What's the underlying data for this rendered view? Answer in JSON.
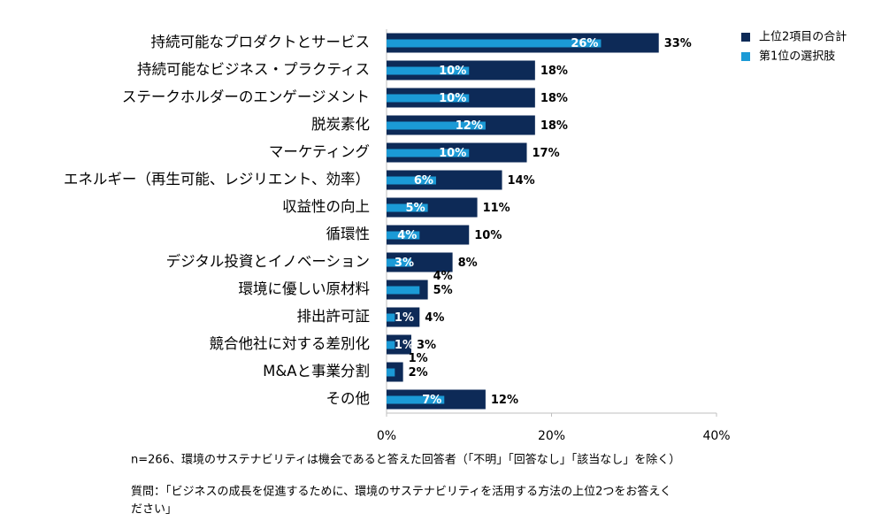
{
  "chart_data": {
    "type": "bar",
    "orientation": "horizontal",
    "categories": [
      "持続可能なプロダクトとサービス",
      "持続可能なビジネス・プラクティス",
      "ステークホルダーのエンゲージメント",
      "脱炭素化",
      "マーケティング",
      "エネルギー（再生可能、レジリエント、効率）",
      "収益性の向上",
      "循環性",
      "デジタル投資とイノベーション",
      "環境に優しい原材料",
      "排出許可証",
      "競合他社に対する差別化",
      "M&Aと事業分割",
      "その他"
    ],
    "series": [
      {
        "name": "上位2項目の合計",
        "color": "#0d2a57",
        "values": [
          33,
          18,
          18,
          18,
          17,
          14,
          11,
          10,
          8,
          5,
          4,
          3,
          2,
          12
        ],
        "value_labels": [
          "33%",
          "18%",
          "18%",
          "18%",
          "17%",
          "14%",
          "11%",
          "10%",
          "8%",
          "5%",
          "4%",
          "3%",
          "2%",
          "12%"
        ]
      },
      {
        "name": "第1位の選択肢",
        "color": "#1b9ad6",
        "values": [
          26,
          10,
          10,
          12,
          10,
          6,
          5,
          4,
          3,
          4,
          1,
          1,
          1,
          7
        ],
        "value_labels": [
          "26%",
          "10%",
          "10%",
          "12%",
          "10%",
          "6%",
          "5%",
          "4%",
          "3%",
          "4%",
          "1%",
          "1%",
          "1%",
          "7%"
        ]
      }
    ],
    "xlim": [
      0,
      40
    ],
    "xticks": [
      {
        "value": 0,
        "label": "0%"
      },
      {
        "value": 20,
        "label": "20%"
      },
      {
        "value": 40,
        "label": "40%"
      }
    ],
    "legend": "top-right",
    "notes": [
      "n=266、環境のサステナビリティは機会であると答えた回答者（「不明」「回答なし」「該当なし」を除く）",
      "質問：「ビジネスの成長を促進するために、環境のサステナビリティを活用する方法の上位2つをお答えく",
      "ださい」"
    ]
  }
}
